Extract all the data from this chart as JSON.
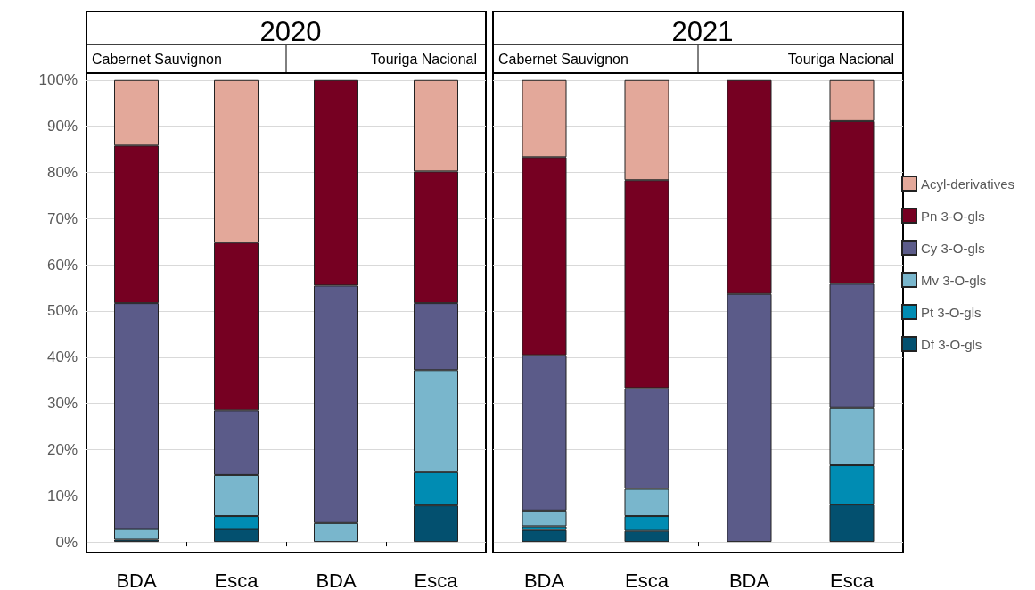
{
  "chart_data": [
    {
      "type": "bar",
      "stacked": true,
      "title": "2020",
      "annotations": [
        "Cabernet Sauvignon",
        "Touriga Nacional"
      ],
      "categories": [
        "BDA",
        "Esca",
        "BDA",
        "Esca"
      ],
      "ylim": [
        -2.3,
        101.5
      ],
      "yticks": [
        {
          "value": 0,
          "label": "0%"
        },
        {
          "value": 10,
          "label": "10%"
        },
        {
          "value": 20,
          "label": "20%"
        },
        {
          "value": 30,
          "label": "30%"
        },
        {
          "value": 40,
          "label": "40%"
        },
        {
          "value": 50,
          "label": "50%"
        },
        {
          "value": 60,
          "label": "60%"
        },
        {
          "value": 70,
          "label": "70%"
        },
        {
          "value": 80,
          "label": "80%"
        },
        {
          "value": 90,
          "label": "90%"
        },
        {
          "value": 100,
          "label": "100%"
        }
      ],
      "grid": "y",
      "legend": false,
      "series": [
        {
          "color": "#03506f",
          "values": [
            0.5,
            2.8,
            0,
            7.9
          ]
        },
        {
          "color": "#008cb3",
          "values": [
            0,
            2.8,
            0,
            7.2
          ]
        },
        {
          "color": "#79b6cc",
          "values": [
            2.3,
            8.9,
            4.1,
            22.1
          ]
        },
        {
          "color": "#5b5b89",
          "values": [
            48.9,
            14.0,
            51.4,
            14.5
          ]
        },
        {
          "color": "#760022",
          "values": [
            34.1,
            36.3,
            44.5,
            28.5
          ]
        },
        {
          "color": "#e3a89a",
          "values": [
            14.2,
            35.2,
            0,
            19.8
          ]
        }
      ]
    },
    {
      "type": "bar",
      "stacked": true,
      "title": "2021",
      "annotations": [
        "Cabernet Sauvignon",
        "Touriga Nacional"
      ],
      "categories": [
        "BDA",
        "Esca",
        "BDA",
        "Esca"
      ],
      "ylim": [
        -2.3,
        101.5
      ],
      "yticks": [
        {
          "value": 0,
          "label": null
        },
        {
          "value": 10,
          "label": null
        },
        {
          "value": 20,
          "label": null
        },
        {
          "value": 30,
          "label": null
        },
        {
          "value": 40,
          "label": null
        },
        {
          "value": 50,
          "label": null
        },
        {
          "value": 60,
          "label": null
        },
        {
          "value": 70,
          "label": null
        },
        {
          "value": 80,
          "label": null
        },
        {
          "value": 90,
          "label": null
        },
        {
          "value": 100,
          "label": null
        }
      ],
      "grid": "y",
      "legend": "right",
      "tick_labels": "x",
      "series": [
        {
          "name": "Df 3-O-gls",
          "color": "#03506f",
          "values": [
            2.6,
            2.4,
            0,
            8.1
          ]
        },
        {
          "name": "Pt 3-O-gls",
          "color": "#008cb3",
          "values": [
            0.8,
            3.2,
            0,
            8.5
          ]
        },
        {
          "name": "Mv 3-O-gls",
          "color": "#79b6cc",
          "values": [
            3.4,
            5.9,
            0,
            12.4
          ]
        },
        {
          "name": "Cy 3-O-gls",
          "color": "#5b5b89",
          "values": [
            33.6,
            21.8,
            53.7,
            26.9
          ]
        },
        {
          "name": "Pn 3-O-gls",
          "color": "#760022",
          "values": [
            42.9,
            45.0,
            46.3,
            35.2
          ]
        },
        {
          "name": "Acyl-derivatives",
          "color": "#e3a89a",
          "values": [
            16.7,
            21.7,
            0,
            8.9
          ]
        }
      ]
    }
  ]
}
